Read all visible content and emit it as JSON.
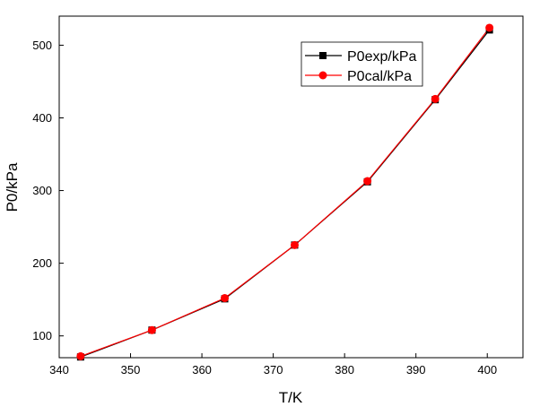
{
  "chart_data": {
    "type": "line",
    "title": "",
    "xlabel": "T/K",
    "ylabel": "P0/kPa",
    "xlim": [
      340,
      405
    ],
    "ylim": [
      70,
      540
    ],
    "grid": false,
    "legend_position": "top-right",
    "x_ticks": [
      340,
      350,
      360,
      370,
      380,
      390,
      400
    ],
    "y_ticks": [
      100,
      200,
      300,
      400,
      500
    ],
    "x": [
      343.0,
      353.0,
      363.2,
      373.0,
      383.2,
      392.7,
      400.3
    ],
    "series": [
      {
        "name": "P0exp/kPa",
        "marker": "square",
        "color": "#000000",
        "values": [
          71,
          108,
          151,
          225,
          312,
          425,
          521
        ]
      },
      {
        "name": "P0cal/kPa",
        "marker": "circle",
        "color": "#ff0000",
        "values": [
          72,
          108,
          152,
          225,
          313,
          426,
          524
        ]
      }
    ]
  }
}
